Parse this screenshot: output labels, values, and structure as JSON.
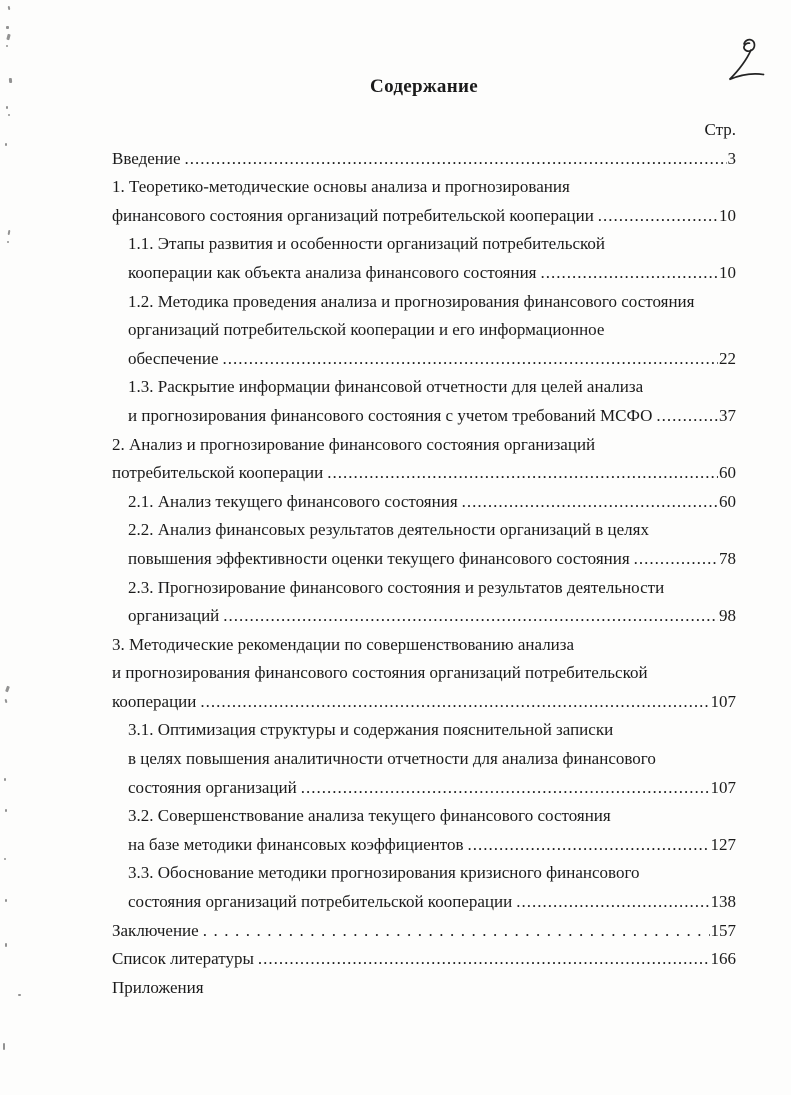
{
  "page": {
    "handwritten_number": "2",
    "title": "Содержание",
    "column_header": "Стр."
  },
  "toc": {
    "lines": [
      {
        "text": "Введение",
        "page": "3",
        "indent": 0,
        "leader": "dots"
      },
      {
        "text": "1. Теоретико-методические основы анализа и прогнозирования",
        "indent": 0
      },
      {
        "text": "финансового состояния организаций потребительской кооперации",
        "page": "10",
        "indent": 0,
        "leader": "dots"
      },
      {
        "text": "1.1. Этапы развития и особенности организаций потребительской",
        "indent": 1
      },
      {
        "text": "кооперации как объекта анализа финансового состояния",
        "page": "10",
        "indent": 1,
        "leader": "dots"
      },
      {
        "text": "1.2. Методика проведения анализа и прогнозирования финансового состояния",
        "indent": 1
      },
      {
        "text": "организаций потребительской кооперации и его информационное",
        "indent": 1
      },
      {
        "text": "обеспечение",
        "page": "22",
        "indent": 1,
        "leader": "dots"
      },
      {
        "text": "1.3. Раскрытие информации финансовой отчетности для целей анализа",
        "indent": 1
      },
      {
        "text": "и прогнозирования финансового состояния с учетом требований МСФО",
        "page": "37",
        "indent": 1,
        "leader": "dots"
      },
      {
        "text": "2. Анализ и прогнозирование финансового состояния организаций",
        "indent": 0
      },
      {
        "text": "потребительской кооперации",
        "page": "60",
        "indent": 0,
        "leader": "dots"
      },
      {
        "text": "2.1. Анализ текущего финансового состояния",
        "page": "60",
        "indent": 1,
        "leader": "dots"
      },
      {
        "text": "2.2. Анализ финансовых результатов деятельности организаций в целях",
        "indent": 1
      },
      {
        "text": "повышения эффективности оценки текущего финансового состояния",
        "page": "78",
        "indent": 1,
        "leader": "dots"
      },
      {
        "text": "2.3. Прогнозирование финансового состояния и результатов деятельности",
        "indent": 1
      },
      {
        "text": "организаций",
        "page": "98",
        "indent": 1,
        "leader": "dots"
      },
      {
        "text": "3. Методические рекомендации по совершенствованию анализа",
        "indent": 0
      },
      {
        "text": "и прогнозирования финансового состояния организаций потребительской",
        "indent": 0
      },
      {
        "text": "кооперации",
        "page": "107",
        "indent": 0,
        "leader": "dots"
      },
      {
        "text": "3.1. Оптимизация структуры и содержания пояснительной записки",
        "indent": 1
      },
      {
        "text": "в целях повышения аналитичности отчетности для анализа финансового",
        "indent": 1
      },
      {
        "text": "состояния организаций",
        "page": "107",
        "indent": 1,
        "leader": "dots"
      },
      {
        "text": "3.2. Совершенствование анализа текущего финансового состояния",
        "indent": 1
      },
      {
        "text": "на базе методики финансовых коэффициентов",
        "page": "127",
        "indent": 1,
        "leader": "dots"
      },
      {
        "text": "3.3. Обоснование методики прогнозирования кризисного финансового",
        "indent": 1
      },
      {
        "text": "состояния организаций потребительской кооперации",
        "page": "138",
        "indent": 1,
        "leader": "dots"
      },
      {
        "text": "Заключение",
        "page": "157",
        "indent": 0,
        "leader": "spaced"
      },
      {
        "text": "Список литературы",
        "page": "166",
        "indent": 0,
        "leader": "dots"
      },
      {
        "text": "Приложения",
        "indent": 0
      }
    ]
  }
}
